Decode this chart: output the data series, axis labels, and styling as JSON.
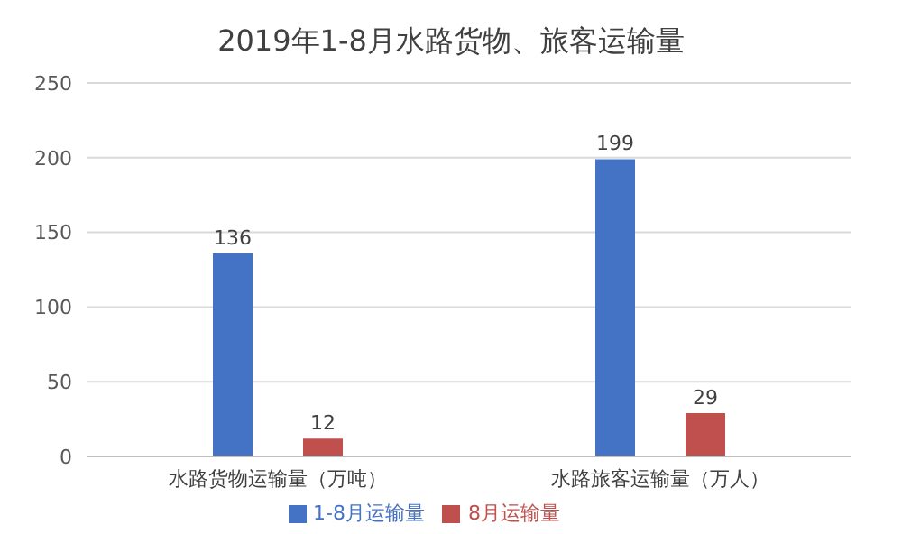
{
  "chart_data": {
    "type": "bar",
    "title": "2019年1-8月水路货物、旅客运输量",
    "categories": [
      "水路货物运输量（万吨）",
      "水路旅客运输量（万人）"
    ],
    "series": [
      {
        "name": "1-8月运输量",
        "color": "#4472c4",
        "values": [
          136,
          199
        ]
      },
      {
        "name": "8月运输量",
        "color": "#c0504d",
        "values": [
          12,
          29
        ]
      }
    ],
    "ylim": [
      0,
      250
    ],
    "yticks": [
      0,
      50,
      100,
      150,
      200,
      250
    ],
    "grid": "y",
    "legend": "bottom",
    "data_labels": true
  }
}
